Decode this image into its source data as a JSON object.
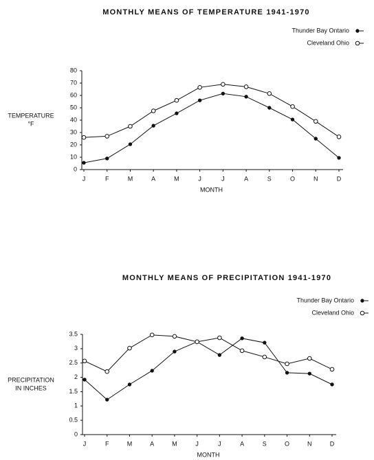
{
  "chart_data": [
    {
      "type": "line",
      "title": "MONTHLY MEANS OF TEMPERATURE 1941-1970",
      "ylabel": [
        "TEMPERATURE",
        "°F"
      ],
      "xlabel": "MONTH",
      "categories": [
        "J",
        "F",
        "M",
        "A",
        "M",
        "J",
        "J",
        "A",
        "S",
        "O",
        "N",
        "D"
      ],
      "series": [
        {
          "name": "Thunder Bay Ontario",
          "color": "#111111",
          "marker": "filled",
          "values": [
            5.5,
            9,
            20.5,
            35.5,
            45.5,
            56,
            61.5,
            59,
            50,
            40.5,
            25,
            9.5
          ]
        },
        {
          "name": "Cleveland Ohio",
          "color": "#111111",
          "marker": "open",
          "values": [
            26,
            27,
            35,
            47.5,
            56,
            66.5,
            69,
            67,
            61.5,
            51,
            39,
            26.5
          ]
        }
      ],
      "ylim": [
        0,
        80
      ],
      "yticks": [
        0,
        10,
        20,
        30,
        40,
        50,
        60,
        70,
        80
      ],
      "legend": "top-right"
    },
    {
      "type": "line",
      "title": "MONTHLY MEANS OF PRECIPITATION 1941-1970",
      "ylabel": [
        "PRECIPITATION",
        "IN INCHES"
      ],
      "xlabel": "MONTH",
      "categories": [
        "J",
        "F",
        "M",
        "A",
        "M",
        "J",
        "J",
        "A",
        "S",
        "O",
        "N",
        "D"
      ],
      "series": [
        {
          "name": "Thunder Bay Ontario",
          "color": "#111111",
          "marker": "filled",
          "values": [
            1.92,
            1.22,
            1.75,
            2.23,
            2.9,
            3.24,
            2.78,
            3.36,
            3.21,
            2.16,
            2.13,
            1.75
          ]
        },
        {
          "name": "Cleveland Ohio",
          "color": "#111111",
          "marker": "open",
          "values": [
            2.57,
            2.2,
            3.02,
            3.48,
            3.43,
            3.24,
            3.38,
            2.93,
            2.71,
            2.47,
            2.66,
            2.28
          ]
        }
      ],
      "ylim": [
        0,
        3.5
      ],
      "yticks": [
        0,
        0.5,
        1,
        1.5,
        2,
        2.5,
        3,
        3.5
      ],
      "legend": "top-right"
    }
  ]
}
